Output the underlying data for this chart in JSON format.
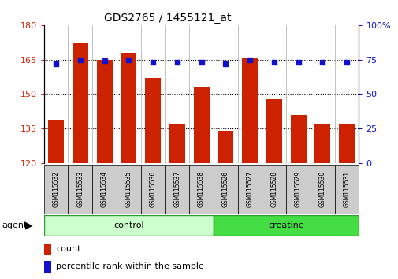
{
  "title": "GDS2765 / 1455121_at",
  "samples": [
    "GSM115532",
    "GSM115533",
    "GSM115534",
    "GSM115535",
    "GSM115536",
    "GSM115537",
    "GSM115538",
    "GSM115526",
    "GSM115527",
    "GSM115528",
    "GSM115529",
    "GSM115530",
    "GSM115531"
  ],
  "counts": [
    139,
    172,
    165,
    168,
    157,
    137,
    153,
    134,
    166,
    148,
    141,
    137,
    137
  ],
  "percentiles": [
    72,
    75,
    74,
    75,
    73,
    73,
    73,
    72,
    75,
    73,
    73,
    73,
    73
  ],
  "control_count": 7,
  "creatine_count": 6,
  "ylim_left": [
    120,
    180
  ],
  "ylim_right": [
    0,
    100
  ],
  "yticks_left": [
    120,
    135,
    150,
    165,
    180
  ],
  "yticks_right": [
    0,
    25,
    50,
    75,
    100
  ],
  "ytick_right_labels": [
    "0",
    "25",
    "50",
    "75",
    "100%"
  ],
  "bar_color": "#cc2200",
  "dot_color": "#1111cc",
  "control_color": "#ccffcc",
  "creatine_color": "#44dd44",
  "tick_label_bg": "#cccccc",
  "agent_label": "agent",
  "control_label": "control",
  "creatine_label": "creatine",
  "legend_count": "count",
  "legend_percentile": "percentile rank within the sample",
  "title_fontsize": 10,
  "axis_fontsize": 8,
  "label_fontsize": 7.5,
  "tick_fontsize": 5.5
}
